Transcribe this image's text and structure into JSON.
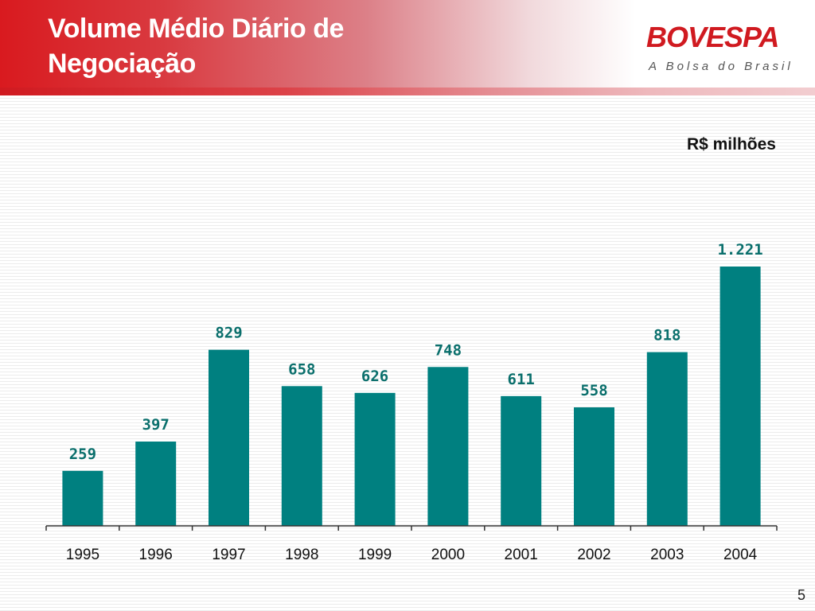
{
  "slide": {
    "title": "Volume Médio Diário de Negociação",
    "unit": "R$ milhões",
    "page_number": "5"
  },
  "brand": {
    "logo_text": "BOVESPA",
    "tagline": "A Bolsa do Brasil",
    "color": "#d01a20"
  },
  "colors": {
    "bar": "#008080",
    "data_label": "#0a6f6c",
    "header_red": "#d91a1f"
  },
  "chart_data": {
    "type": "bar",
    "title": "",
    "xlabel": "",
    "ylabel": "",
    "unit": "R$ milhões",
    "categories": [
      "1995",
      "1996",
      "1997",
      "1998",
      "1999",
      "2000",
      "2001",
      "2002",
      "2003",
      "2004"
    ],
    "values": [
      259,
      397,
      829,
      658,
      626,
      748,
      611,
      558,
      818,
      1221
    ],
    "value_labels": [
      "259",
      "397",
      "829",
      "658",
      "626",
      "748",
      "611",
      "558",
      "818",
      "1.221"
    ],
    "ylim": [
      0,
      1221
    ],
    "grid": false,
    "legend": "none"
  }
}
